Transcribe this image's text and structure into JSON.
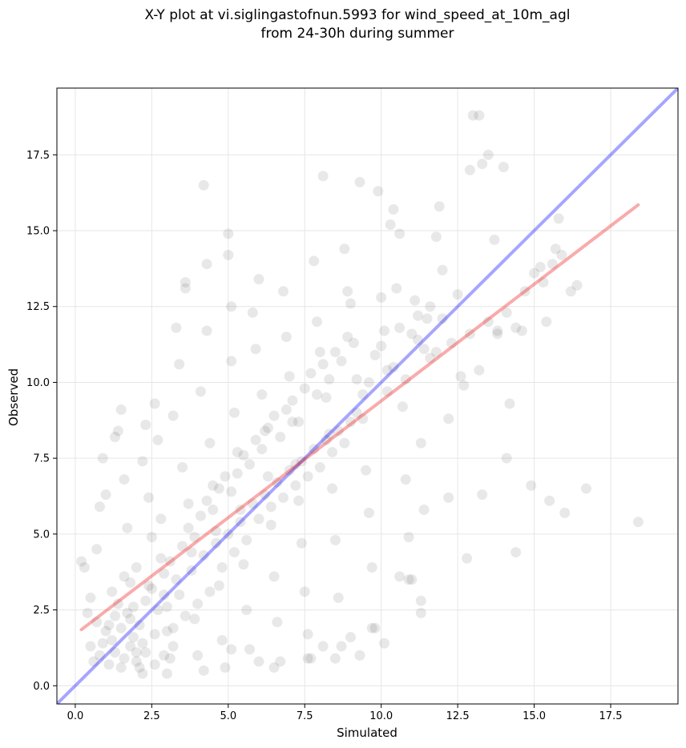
{
  "chart_data": {
    "type": "scatter",
    "title_line1": "X-Y plot at vi.siglingastofnun.5993 for wind_speed_at_10m_agl",
    "title_line2": "from 24-30h during summer",
    "xlabel": "Simulated",
    "ylabel": "Observed",
    "xlim": [
      -0.6,
      19.7
    ],
    "ylim": [
      -0.6,
      19.7
    ],
    "xticks": [
      "0.0",
      "2.5",
      "5.0",
      "7.5",
      "10.0",
      "12.5",
      "15.0",
      "17.5"
    ],
    "yticks": [
      "0.0",
      "2.5",
      "5.0",
      "7.5",
      "10.0",
      "12.5",
      "15.0",
      "17.5"
    ],
    "grid": true,
    "point_color": "#000000",
    "point_alpha": 0.09,
    "identity_line": {
      "color": "#0000ff",
      "x": [
        -0.6,
        19.7
      ],
      "y": [
        -0.6,
        19.7
      ]
    },
    "fit_line": {
      "color": "#ee2222",
      "x": [
        0.2,
        18.4
      ],
      "y": [
        1.85,
        15.85
      ]
    },
    "points": [
      [
        0.2,
        4.1
      ],
      [
        0.3,
        3.9
      ],
      [
        0.4,
        2.4
      ],
      [
        0.5,
        1.3
      ],
      [
        0.6,
        0.8
      ],
      [
        0.7,
        4.5
      ],
      [
        0.8,
        5.9
      ],
      [
        0.9,
        7.5
      ],
      [
        1.0,
        6.3
      ],
      [
        1.1,
        2.0
      ],
      [
        1.2,
        1.5
      ],
      [
        1.3,
        8.2
      ],
      [
        1.4,
        8.4
      ],
      [
        1.5,
        9.1
      ],
      [
        1.6,
        6.8
      ],
      [
        1.7,
        5.2
      ],
      [
        1.8,
        3.4
      ],
      [
        1.9,
        2.6
      ],
      [
        2.0,
        1.1
      ],
      [
        2.1,
        0.6
      ],
      [
        2.2,
        7.4
      ],
      [
        2.3,
        8.6
      ],
      [
        2.4,
        6.2
      ],
      [
        2.5,
        4.9
      ],
      [
        2.6,
        9.3
      ],
      [
        2.7,
        8.1
      ],
      [
        2.8,
        5.5
      ],
      [
        2.9,
        3.0
      ],
      [
        3.0,
        1.8
      ],
      [
        3.1,
        0.9
      ],
      [
        3.2,
        8.9
      ],
      [
        3.3,
        11.8
      ],
      [
        3.4,
        10.6
      ],
      [
        3.5,
        7.2
      ],
      [
        3.6,
        13.3
      ],
      [
        3.6,
        13.1
      ],
      [
        3.7,
        6.0
      ],
      [
        3.8,
        4.4
      ],
      [
        3.9,
        2.2
      ],
      [
        4.0,
        1.0
      ],
      [
        4.1,
        9.7
      ],
      [
        4.2,
        16.5
      ],
      [
        4.3,
        13.9
      ],
      [
        4.3,
        11.7
      ],
      [
        4.4,
        8.0
      ],
      [
        4.5,
        6.6
      ],
      [
        4.6,
        5.1
      ],
      [
        4.7,
        3.3
      ],
      [
        4.8,
        1.5
      ],
      [
        4.9,
        0.6
      ],
      [
        5.0,
        14.2
      ],
      [
        5.0,
        14.9
      ],
      [
        5.1,
        12.5
      ],
      [
        5.1,
        10.7
      ],
      [
        5.2,
        9.0
      ],
      [
        5.3,
        7.7
      ],
      [
        5.4,
        5.8
      ],
      [
        5.5,
        4.0
      ],
      [
        5.6,
        2.5
      ],
      [
        5.7,
        1.2
      ],
      [
        5.8,
        12.3
      ],
      [
        5.9,
        11.1
      ],
      [
        6.0,
        13.4
      ],
      [
        6.1,
        9.6
      ],
      [
        6.2,
        8.4
      ],
      [
        6.3,
        6.9
      ],
      [
        6.4,
        5.3
      ],
      [
        6.5,
        3.6
      ],
      [
        6.6,
        2.1
      ],
      [
        6.7,
        0.8
      ],
      [
        6.8,
        13.0
      ],
      [
        6.9,
        11.5
      ],
      [
        7.0,
        10.2
      ],
      [
        7.1,
        8.7
      ],
      [
        7.2,
        7.3
      ],
      [
        7.3,
        6.1
      ],
      [
        7.4,
        4.7
      ],
      [
        7.5,
        3.1
      ],
      [
        7.6,
        1.7
      ],
      [
        7.7,
        0.9
      ],
      [
        7.8,
        14.0
      ],
      [
        7.9,
        12.0
      ],
      [
        8.0,
        11.0
      ],
      [
        8.1,
        16.8
      ],
      [
        8.2,
        9.5
      ],
      [
        8.3,
        8.3
      ],
      [
        8.4,
        6.5
      ],
      [
        8.5,
        4.8
      ],
      [
        8.6,
        2.9
      ],
      [
        8.7,
        1.3
      ],
      [
        8.8,
        14.4
      ],
      [
        8.9,
        13.0
      ],
      [
        9.0,
        12.6
      ],
      [
        9.1,
        11.3
      ],
      [
        9.2,
        10.1
      ],
      [
        9.3,
        16.6
      ],
      [
        9.4,
        8.8
      ],
      [
        9.5,
        7.1
      ],
      [
        9.6,
        5.7
      ],
      [
        9.7,
        3.9
      ],
      [
        9.8,
        1.9
      ],
      [
        9.9,
        16.3
      ],
      [
        10.0,
        12.8
      ],
      [
        10.1,
        11.7
      ],
      [
        10.2,
        10.4
      ],
      [
        10.3,
        15.2
      ],
      [
        10.4,
        15.7
      ],
      [
        10.5,
        13.1
      ],
      [
        10.6,
        14.9
      ],
      [
        10.7,
        9.2
      ],
      [
        10.8,
        6.8
      ],
      [
        10.9,
        4.9
      ],
      [
        11.0,
        3.5
      ],
      [
        11.1,
        12.7
      ],
      [
        11.2,
        11.4
      ],
      [
        11.3,
        8.0
      ],
      [
        11.4,
        5.8
      ],
      [
        11.5,
        12.1
      ],
      [
        11.6,
        10.8
      ],
      [
        11.8,
        14.8
      ],
      [
        11.9,
        15.8
      ],
      [
        12.0,
        13.7
      ],
      [
        12.2,
        8.8
      ],
      [
        12.5,
        12.9
      ],
      [
        12.7,
        9.9
      ],
      [
        12.8,
        4.2
      ],
      [
        12.9,
        17.0
      ],
      [
        13.0,
        18.8
      ],
      [
        13.2,
        18.8
      ],
      [
        13.3,
        17.2
      ],
      [
        13.5,
        17.5
      ],
      [
        13.7,
        14.7
      ],
      [
        13.8,
        11.7
      ],
      [
        14.0,
        17.1
      ],
      [
        14.1,
        7.5
      ],
      [
        14.2,
        9.3
      ],
      [
        14.4,
        4.4
      ],
      [
        14.6,
        11.7
      ],
      [
        14.9,
        6.6
      ],
      [
        15.2,
        13.8
      ],
      [
        15.4,
        12.0
      ],
      [
        15.5,
        6.1
      ],
      [
        15.7,
        14.4
      ],
      [
        15.8,
        15.4
      ],
      [
        16.0,
        5.7
      ],
      [
        16.2,
        13.0
      ],
      [
        16.4,
        13.2
      ],
      [
        16.7,
        6.5
      ],
      [
        18.4,
        5.4
      ],
      [
        12.2,
        6.2
      ],
      [
        13.3,
        6.3
      ],
      [
        11.3,
        2.4
      ],
      [
        11.3,
        2.8
      ],
      [
        10.9,
        3.5
      ],
      [
        10.6,
        3.6
      ],
      [
        10.1,
        1.4
      ],
      [
        9.7,
        1.9
      ],
      [
        9.3,
        1.0
      ],
      [
        9.0,
        1.6
      ],
      [
        8.5,
        0.9
      ],
      [
        8.1,
        1.3
      ],
      [
        7.6,
        0.9
      ],
      [
        6.5,
        0.6
      ],
      [
        6.0,
        0.8
      ],
      [
        5.1,
        1.2
      ],
      [
        4.2,
        0.5
      ],
      [
        3.0,
        0.4
      ],
      [
        2.2,
        0.4
      ],
      [
        1.5,
        0.6
      ],
      [
        0.8,
        1.0
      ],
      [
        1.0,
        1.8
      ],
      [
        1.3,
        2.3
      ],
      [
        1.5,
        1.9
      ],
      [
        1.7,
        2.4
      ],
      [
        1.9,
        1.6
      ],
      [
        2.1,
        2.0
      ],
      [
        2.3,
        2.8
      ],
      [
        2.5,
        3.2
      ],
      [
        2.7,
        2.5
      ],
      [
        2.9,
        3.7
      ],
      [
        3.1,
        4.1
      ],
      [
        3.3,
        3.5
      ],
      [
        3.5,
        4.6
      ],
      [
        3.7,
        5.2
      ],
      [
        3.9,
        4.9
      ],
      [
        4.1,
        5.6
      ],
      [
        4.3,
        6.1
      ],
      [
        4.5,
        5.8
      ],
      [
        4.7,
        6.5
      ],
      [
        4.9,
        6.9
      ],
      [
        5.1,
        6.4
      ],
      [
        5.3,
        7.0
      ],
      [
        5.5,
        7.6
      ],
      [
        5.7,
        7.3
      ],
      [
        5.9,
        8.1
      ],
      [
        6.1,
        7.8
      ],
      [
        6.3,
        8.5
      ],
      [
        6.5,
        8.9
      ],
      [
        6.7,
        8.2
      ],
      [
        6.9,
        9.1
      ],
      [
        7.1,
        9.4
      ],
      [
        7.3,
        8.7
      ],
      [
        7.5,
        9.8
      ],
      [
        7.7,
        10.3
      ],
      [
        7.9,
        9.6
      ],
      [
        8.1,
        10.6
      ],
      [
        8.3,
        10.1
      ],
      [
        8.5,
        11.0
      ],
      [
        8.7,
        10.7
      ],
      [
        8.9,
        11.5
      ],
      [
        1.2,
        3.1
      ],
      [
        1.4,
        2.7
      ],
      [
        1.6,
        3.6
      ],
      [
        1.8,
        2.2
      ],
      [
        2.0,
        3.9
      ],
      [
        2.2,
        1.4
      ],
      [
        2.4,
        3.3
      ],
      [
        2.6,
        1.7
      ],
      [
        2.8,
        4.2
      ],
      [
        3.0,
        2.6
      ],
      [
        3.2,
        1.9
      ],
      [
        3.4,
        3.0
      ],
      [
        3.6,
        2.3
      ],
      [
        3.8,
        3.8
      ],
      [
        4.0,
        2.7
      ],
      [
        4.2,
        4.3
      ],
      [
        4.4,
        3.1
      ],
      [
        4.6,
        4.7
      ],
      [
        4.8,
        3.9
      ],
      [
        5.0,
        5.0
      ],
      [
        5.2,
        4.4
      ],
      [
        5.4,
        5.4
      ],
      [
        5.6,
        4.8
      ],
      [
        5.8,
        6.0
      ],
      [
        6.0,
        5.5
      ],
      [
        6.2,
        6.3
      ],
      [
        6.4,
        5.9
      ],
      [
        6.6,
        6.7
      ],
      [
        6.8,
        6.2
      ],
      [
        7.0,
        7.1
      ],
      [
        7.2,
        6.6
      ],
      [
        7.4,
        7.4
      ],
      [
        7.6,
        6.9
      ],
      [
        7.8,
        7.8
      ],
      [
        8.0,
        7.2
      ],
      [
        8.2,
        8.1
      ],
      [
        8.4,
        7.7
      ],
      [
        8.6,
        8.4
      ],
      [
        8.8,
        8.0
      ],
      [
        9.0,
        8.7
      ],
      [
        9.2,
        9.0
      ],
      [
        9.4,
        9.6
      ],
      [
        9.6,
        10.0
      ],
      [
        9.8,
        10.9
      ],
      [
        10.0,
        11.2
      ],
      [
        10.2,
        9.7
      ],
      [
        10.4,
        10.5
      ],
      [
        10.6,
        11.8
      ],
      [
        10.8,
        10.1
      ],
      [
        11.0,
        11.6
      ],
      [
        11.2,
        12.2
      ],
      [
        11.4,
        11.1
      ],
      [
        11.6,
        12.5
      ],
      [
        11.8,
        11.0
      ],
      [
        12.0,
        12.1
      ],
      [
        12.3,
        11.3
      ],
      [
        12.6,
        10.2
      ],
      [
        12.9,
        11.6
      ],
      [
        13.2,
        10.4
      ],
      [
        13.5,
        12.0
      ],
      [
        13.8,
        11.6
      ],
      [
        14.1,
        12.3
      ],
      [
        14.4,
        11.8
      ],
      [
        14.7,
        13.0
      ],
      [
        15.0,
        13.6
      ],
      [
        15.3,
        13.3
      ],
      [
        15.6,
        13.9
      ],
      [
        15.9,
        14.2
      ],
      [
        0.5,
        2.9
      ],
      [
        0.7,
        2.1
      ],
      [
        0.9,
        1.4
      ],
      [
        1.1,
        0.7
      ],
      [
        1.3,
        1.1
      ],
      [
        1.6,
        0.9
      ],
      [
        1.8,
        1.3
      ],
      [
        2.0,
        0.8
      ],
      [
        2.3,
        1.1
      ],
      [
        2.6,
        0.7
      ],
      [
        2.9,
        1.0
      ],
      [
        3.2,
        1.3
      ]
    ]
  }
}
